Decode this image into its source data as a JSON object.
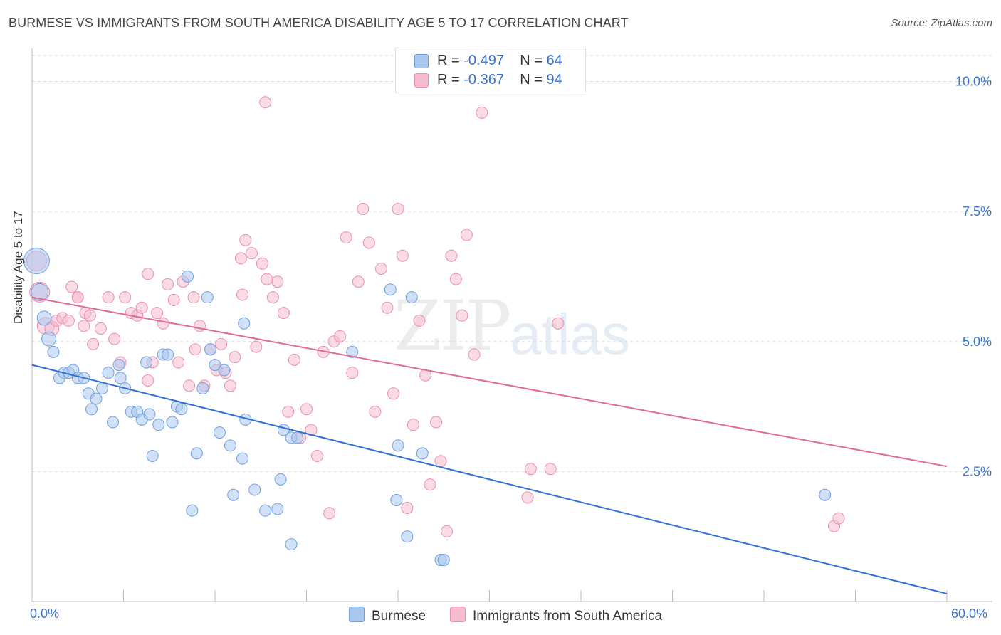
{
  "title": "BURMESE VS IMMIGRANTS FROM SOUTH AMERICA DISABILITY AGE 5 TO 17 CORRELATION CHART",
  "source": "Source: ZipAtlas.com",
  "watermark": {
    "zip": "ZIP",
    "atlas": "atlas"
  },
  "legend_top": {
    "rows": [
      {
        "r_label": "R = ",
        "r_value": "-0.497",
        "n_label": "N = ",
        "n_value": "64"
      },
      {
        "r_label": "R = ",
        "r_value": "-0.367",
        "n_label": "N = ",
        "n_value": "94"
      }
    ]
  },
  "colors": {
    "burmese_fill": "#a9c7ef",
    "burmese_stroke": "#6f9fdc",
    "burmese_line": "#2f6fd0",
    "sa_fill": "#f6bccd",
    "sa_stroke": "#ea90ad",
    "sa_line": "#e06b94",
    "axis_text": "#3b74d0",
    "grid": "#dddddd"
  },
  "chart_data": {
    "type": "scatter",
    "title": "BURMESE VS IMMIGRANTS FROM SOUTH AMERICA DISABILITY AGE 5 TO 17 CORRELATION CHART",
    "xlabel": "",
    "ylabel": "Disability Age 5 to 17",
    "xlim": [
      0,
      60
    ],
    "ylim": [
      0,
      10.5
    ],
    "x_tick_labels": [
      "0.0%",
      "60.0%"
    ],
    "y_ticks": [
      2.5,
      5.0,
      7.5,
      10.0
    ],
    "y_tick_labels": [
      "2.5%",
      "5.0%",
      "7.5%",
      "10.0%"
    ],
    "grid": "horizontal dashed",
    "legend": "bottom-center",
    "series": [
      {
        "name": "Burmese",
        "r": -0.497,
        "n": 64,
        "trend": {
          "x": [
            0,
            60
          ],
          "y": [
            4.55,
            0.15
          ]
        },
        "points": [
          [
            0.3,
            6.55,
            18
          ],
          [
            0.5,
            5.95,
            12
          ],
          [
            0.8,
            5.45,
            10
          ],
          [
            1.1,
            5.05,
            10
          ],
          [
            1.4,
            4.8,
            8
          ],
          [
            1.8,
            4.3,
            8
          ],
          [
            2.1,
            4.4,
            8
          ],
          [
            2.4,
            4.4,
            8
          ],
          [
            2.7,
            4.45,
            8
          ],
          [
            3.0,
            4.3,
            8
          ],
          [
            3.4,
            4.3,
            8
          ],
          [
            3.7,
            4.0,
            8
          ],
          [
            3.9,
            3.7,
            8
          ],
          [
            4.2,
            3.9,
            8
          ],
          [
            4.6,
            4.1,
            8
          ],
          [
            5.0,
            4.4,
            8
          ],
          [
            5.3,
            3.45,
            8
          ],
          [
            5.8,
            4.3,
            8
          ],
          [
            5.7,
            4.55,
            8
          ],
          [
            6.1,
            4.1,
            8
          ],
          [
            6.5,
            3.65,
            8
          ],
          [
            6.9,
            3.65,
            8
          ],
          [
            7.2,
            3.5,
            8
          ],
          [
            7.5,
            4.6,
            8
          ],
          [
            7.7,
            3.6,
            8
          ],
          [
            7.9,
            2.8,
            8
          ],
          [
            8.3,
            3.4,
            8
          ],
          [
            8.6,
            4.75,
            8
          ],
          [
            8.9,
            4.75,
            8
          ],
          [
            9.2,
            3.45,
            8
          ],
          [
            9.5,
            3.75,
            8
          ],
          [
            9.8,
            3.7,
            8
          ],
          [
            10.2,
            6.25,
            8
          ],
          [
            10.5,
            1.75,
            8
          ],
          [
            10.8,
            2.85,
            8
          ],
          [
            11.2,
            4.1,
            8
          ],
          [
            11.5,
            5.85,
            8
          ],
          [
            11.7,
            4.85,
            8
          ],
          [
            12.0,
            4.55,
            8
          ],
          [
            12.3,
            3.25,
            8
          ],
          [
            12.6,
            4.45,
            8
          ],
          [
            13.0,
            3.0,
            8
          ],
          [
            13.2,
            2.05,
            8
          ],
          [
            13.9,
            5.35,
            8
          ],
          [
            14.0,
            3.5,
            8
          ],
          [
            13.8,
            2.75,
            8
          ],
          [
            14.6,
            2.15,
            8
          ],
          [
            15.3,
            1.75,
            8
          ],
          [
            16.1,
            1.78,
            8
          ],
          [
            16.3,
            2.35,
            8
          ],
          [
            16.5,
            3.3,
            8
          ],
          [
            17.0,
            1.1,
            8
          ],
          [
            17.0,
            3.15,
            8
          ],
          [
            17.4,
            3.15,
            8
          ],
          [
            21.0,
            4.8,
            8
          ],
          [
            23.5,
            6.0,
            8
          ],
          [
            24.0,
            3.0,
            8
          ],
          [
            23.9,
            1.95,
            8
          ],
          [
            24.9,
            5.85,
            8
          ],
          [
            24.6,
            1.25,
            8
          ],
          [
            25.6,
            2.85,
            8
          ],
          [
            26.8,
            0.8,
            8
          ],
          [
            27.0,
            0.8,
            8
          ],
          [
            52.0,
            2.05,
            8
          ]
        ]
      },
      {
        "name": "Immigrants from South America",
        "r": -0.367,
        "n": 94,
        "trend": {
          "x": [
            0,
            60
          ],
          "y": [
            5.85,
            2.6
          ]
        },
        "points": [
          [
            0.3,
            6.55,
            14
          ],
          [
            0.5,
            5.95,
            14
          ],
          [
            0.9,
            5.3,
            12
          ],
          [
            1.3,
            5.25,
            10
          ],
          [
            1.6,
            5.4,
            8
          ],
          [
            2.0,
            5.45,
            8
          ],
          [
            2.4,
            5.4,
            8
          ],
          [
            2.6,
            6.05,
            8
          ],
          [
            3.0,
            5.85,
            8
          ],
          [
            3.5,
            5.55,
            8
          ],
          [
            3.8,
            5.5,
            8
          ],
          [
            3.4,
            5.3,
            8
          ],
          [
            4.0,
            4.95,
            8
          ],
          [
            4.5,
            5.25,
            8
          ],
          [
            5.0,
            5.85,
            8
          ],
          [
            5.4,
            5.05,
            8
          ],
          [
            5.8,
            4.6,
            8
          ],
          [
            6.1,
            5.85,
            8
          ],
          [
            6.5,
            5.55,
            8
          ],
          [
            6.9,
            5.5,
            8
          ],
          [
            7.2,
            5.65,
            8
          ],
          [
            7.6,
            4.25,
            8
          ],
          [
            7.9,
            4.6,
            8
          ],
          [
            8.2,
            5.55,
            8
          ],
          [
            8.6,
            5.35,
            8
          ],
          [
            8.9,
            6.1,
            8
          ],
          [
            9.3,
            5.8,
            8
          ],
          [
            9.6,
            4.6,
            8
          ],
          [
            9.9,
            6.15,
            8
          ],
          [
            10.3,
            4.15,
            8
          ],
          [
            10.7,
            4.85,
            8
          ],
          [
            11.0,
            5.3,
            8
          ],
          [
            11.3,
            4.15,
            8
          ],
          [
            11.7,
            4.85,
            8
          ],
          [
            12.1,
            4.45,
            8
          ],
          [
            12.4,
            4.95,
            8
          ],
          [
            12.7,
            4.4,
            8
          ],
          [
            13.0,
            4.15,
            8
          ],
          [
            13.3,
            4.7,
            8
          ],
          [
            13.7,
            6.6,
            8
          ],
          [
            14.0,
            6.95,
            8
          ],
          [
            14.4,
            6.7,
            8
          ],
          [
            14.7,
            4.9,
            8
          ],
          [
            15.1,
            6.5,
            8
          ],
          [
            15.4,
            6.2,
            8
          ],
          [
            15.8,
            5.85,
            8
          ],
          [
            16.1,
            6.15,
            8
          ],
          [
            16.5,
            5.55,
            8
          ],
          [
            16.8,
            3.65,
            8
          ],
          [
            17.2,
            4.65,
            8
          ],
          [
            17.6,
            3.15,
            8
          ],
          [
            18.0,
            3.7,
            8
          ],
          [
            18.3,
            3.3,
            8
          ],
          [
            18.7,
            2.8,
            8
          ],
          [
            19.1,
            4.8,
            8
          ],
          [
            19.5,
            1.7,
            8
          ],
          [
            19.8,
            5.0,
            8
          ],
          [
            20.2,
            5.1,
            8
          ],
          [
            20.6,
            7.0,
            8
          ],
          [
            21.0,
            4.4,
            8
          ],
          [
            21.4,
            6.15,
            8
          ],
          [
            21.7,
            7.55,
            8
          ],
          [
            22.1,
            6.9,
            8
          ],
          [
            22.5,
            3.65,
            8
          ],
          [
            22.9,
            6.4,
            8
          ],
          [
            23.3,
            5.65,
            8
          ],
          [
            23.7,
            4.0,
            8
          ],
          [
            24.0,
            7.55,
            8
          ],
          [
            24.3,
            6.65,
            8
          ],
          [
            24.6,
            1.8,
            8
          ],
          [
            25.0,
            3.4,
            8
          ],
          [
            25.4,
            5.4,
            8
          ],
          [
            25.8,
            4.35,
            8
          ],
          [
            26.1,
            2.25,
            8
          ],
          [
            26.5,
            3.45,
            8
          ],
          [
            26.8,
            2.7,
            8
          ],
          [
            27.2,
            1.35,
            8
          ],
          [
            27.5,
            6.65,
            8
          ],
          [
            27.8,
            6.2,
            8
          ],
          [
            28.2,
            5.5,
            8
          ],
          [
            28.5,
            7.05,
            8
          ],
          [
            29.0,
            4.75,
            8
          ],
          [
            29.5,
            9.4,
            8
          ],
          [
            15.3,
            9.6,
            8
          ],
          [
            32.7,
            2.55,
            8
          ],
          [
            32.5,
            2.0,
            8
          ],
          [
            34.0,
            2.55,
            8
          ],
          [
            34.5,
            5.35,
            8
          ],
          [
            13.8,
            5.9,
            8
          ],
          [
            10.6,
            5.85,
            8
          ],
          [
            52.6,
            1.45,
            8
          ],
          [
            52.9,
            1.6,
            8
          ],
          [
            7.6,
            6.3,
            8
          ],
          [
            3.0,
            5.85,
            8
          ]
        ]
      }
    ]
  },
  "bottom_legend": [
    {
      "label": "Burmese"
    },
    {
      "label": "Immigrants from South America"
    }
  ]
}
